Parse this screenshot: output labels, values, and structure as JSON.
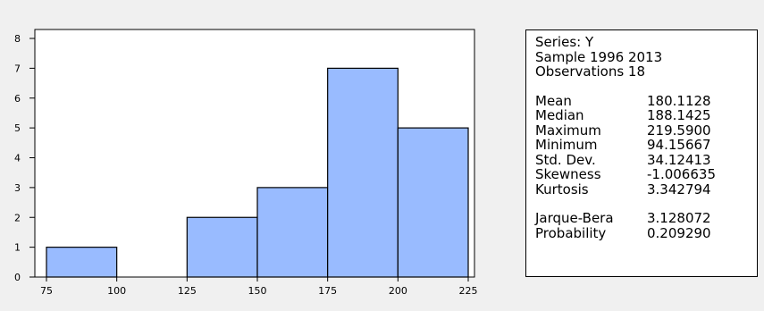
{
  "chart_data": {
    "type": "bar",
    "bins": [
      {
        "from": 75,
        "to": 100,
        "count": 1
      },
      {
        "from": 100,
        "to": 125,
        "count": 0
      },
      {
        "from": 125,
        "to": 150,
        "count": 2
      },
      {
        "from": 150,
        "to": 175,
        "count": 3
      },
      {
        "from": 175,
        "to": 200,
        "count": 7
      },
      {
        "from": 200,
        "to": 225,
        "count": 5
      }
    ],
    "categories": [
      "75-100",
      "100-125",
      "125-150",
      "150-175",
      "175-200",
      "200-225"
    ],
    "values": [
      1,
      0,
      2,
      3,
      7,
      5
    ],
    "xlim": [
      75,
      225
    ],
    "ylim": [
      0,
      8
    ],
    "x_ticks": [
      "75",
      "100",
      "125",
      "150",
      "175",
      "200",
      "225"
    ],
    "y_ticks": [
      "0",
      "1",
      "2",
      "3",
      "4",
      "5",
      "6",
      "7",
      "8"
    ],
    "title": "",
    "xlabel": "",
    "ylabel": "",
    "grid": false,
    "bar_color": "#99bbff",
    "bar_edge_color": "#000000"
  },
  "stats": {
    "header": [
      "Series: Y",
      "Sample 1996 2013",
      "Observations 18"
    ],
    "descriptive": [
      {
        "label": "Mean",
        "value": "180.1128"
      },
      {
        "label": "Median",
        "value": "188.1425"
      },
      {
        "label": "Maximum",
        "value": "219.5900"
      },
      {
        "label": "Minimum",
        "value": "94.15667"
      },
      {
        "label": "Std. Dev.",
        "value": "34.12413"
      },
      {
        "label": "Skewness",
        "value": "-1.006635"
      },
      {
        "label": "Kurtosis",
        "value": "3.342794"
      }
    ],
    "tests": [
      {
        "label": "Jarque-Bera",
        "value": "3.128072"
      },
      {
        "label": "Probability",
        "value": "0.209290"
      }
    ]
  }
}
